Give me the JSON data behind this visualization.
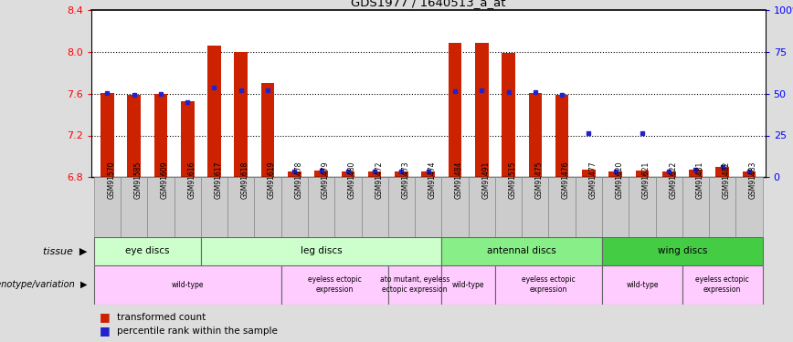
{
  "title": "GDS1977 / 1640513_a_at",
  "samples": [
    "GSM91570",
    "GSM91585",
    "GSM91609",
    "GSM91616",
    "GSM91617",
    "GSM91618",
    "GSM91619",
    "GSM91478",
    "GSM91479",
    "GSM91480",
    "GSM91472",
    "GSM91473",
    "GSM91474",
    "GSM91484",
    "GSM91491",
    "GSM91515",
    "GSM91475",
    "GSM91476",
    "GSM91477",
    "GSM91620",
    "GSM91621",
    "GSM91622",
    "GSM91481",
    "GSM91482",
    "GSM91483"
  ],
  "bar_values": [
    7.61,
    7.585,
    7.6,
    7.53,
    8.06,
    8.0,
    7.7,
    6.855,
    6.862,
    6.853,
    6.857,
    6.851,
    6.853,
    8.09,
    8.09,
    7.99,
    7.61,
    7.585,
    6.872,
    6.855,
    6.866,
    6.858,
    6.868,
    6.897,
    6.855
  ],
  "dot_values": [
    7.61,
    7.585,
    7.6,
    7.52,
    7.655,
    7.63,
    7.63,
    6.855,
    6.862,
    6.853,
    6.857,
    6.851,
    6.853,
    7.625,
    7.63,
    7.615,
    7.613,
    7.585,
    7.22,
    6.855,
    7.225,
    6.858,
    6.868,
    6.897,
    6.855
  ],
  "ylim": [
    6.8,
    8.4
  ],
  "yticks": [
    6.8,
    7.2,
    7.6,
    8.0,
    8.4
  ],
  "right_yticks": [
    0,
    25,
    50,
    75,
    100
  ],
  "bar_color": "#cc2200",
  "dot_color": "#2222cc",
  "tissue_spans": [
    {
      "label": "eye discs",
      "start": 0,
      "end": 4,
      "color": "#ccffcc"
    },
    {
      "label": "leg discs",
      "start": 4,
      "end": 13,
      "color": "#ccffcc"
    },
    {
      "label": "antennal discs",
      "start": 13,
      "end": 19,
      "color": "#88ee88"
    },
    {
      "label": "wing discs",
      "start": 19,
      "end": 25,
      "color": "#44cc44"
    }
  ],
  "geno_spans": [
    {
      "label": "wild-type",
      "start": 0,
      "end": 7,
      "color": "#ffccff"
    },
    {
      "label": "eyeless ectopic\nexpression",
      "start": 7,
      "end": 11,
      "color": "#ffccff"
    },
    {
      "label": "ato mutant, eyeless\nectopic expression",
      "start": 11,
      "end": 13,
      "color": "#ffccff"
    },
    {
      "label": "wild-type",
      "start": 13,
      "end": 15,
      "color": "#ffccff"
    },
    {
      "label": "eyeless ectopic\nexpression",
      "start": 15,
      "end": 19,
      "color": "#ffccff"
    },
    {
      "label": "wild-type",
      "start": 19,
      "end": 22,
      "color": "#ffccff"
    },
    {
      "label": "eyeless ectopic\nexpression",
      "start": 22,
      "end": 25,
      "color": "#ffccff"
    }
  ],
  "fig_bg": "#dddddd",
  "plot_bg": "#ffffff"
}
